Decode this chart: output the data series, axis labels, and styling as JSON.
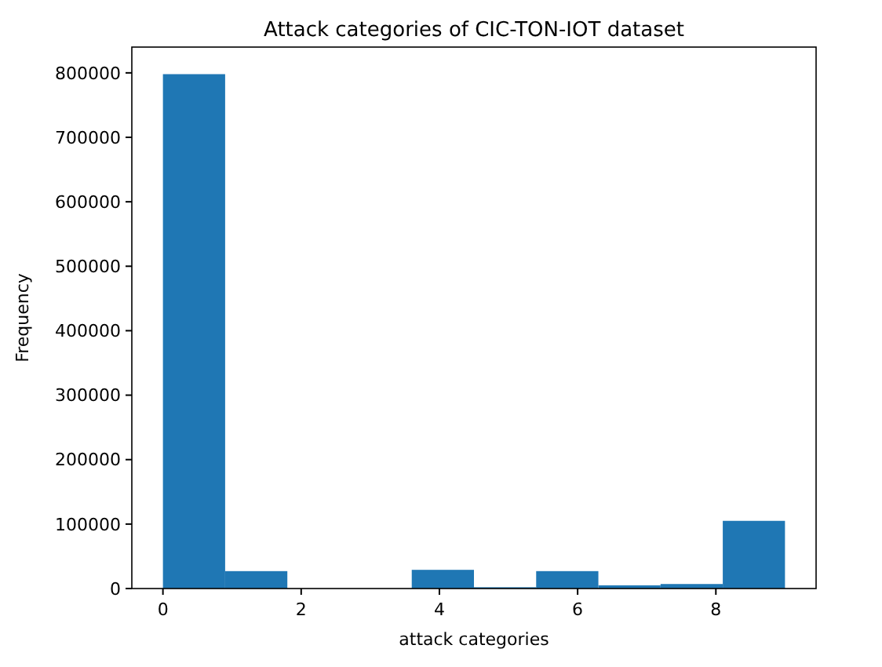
{
  "chart_data": {
    "type": "histogram",
    "title": "Attack categories of CIC-TON-IOT dataset",
    "xlabel": "attack categories",
    "ylabel": "Frequency",
    "bins": [
      0,
      0.9,
      1.8,
      2.7,
      3.6,
      4.5,
      5.4,
      6.3,
      7.2,
      8.1,
      9
    ],
    "values": [
      798000,
      27000,
      0,
      0,
      29000,
      2000,
      27000,
      5000,
      7000,
      105000
    ],
    "color": "#1f77b4",
    "xlim": [
      -0.45,
      9.45
    ],
    "ylim": [
      0,
      840000
    ],
    "xticks": [
      0,
      2,
      4,
      6,
      8
    ],
    "yticks": [
      0,
      100000,
      200000,
      300000,
      400000,
      500000,
      600000,
      700000,
      800000
    ],
    "grid": false
  }
}
